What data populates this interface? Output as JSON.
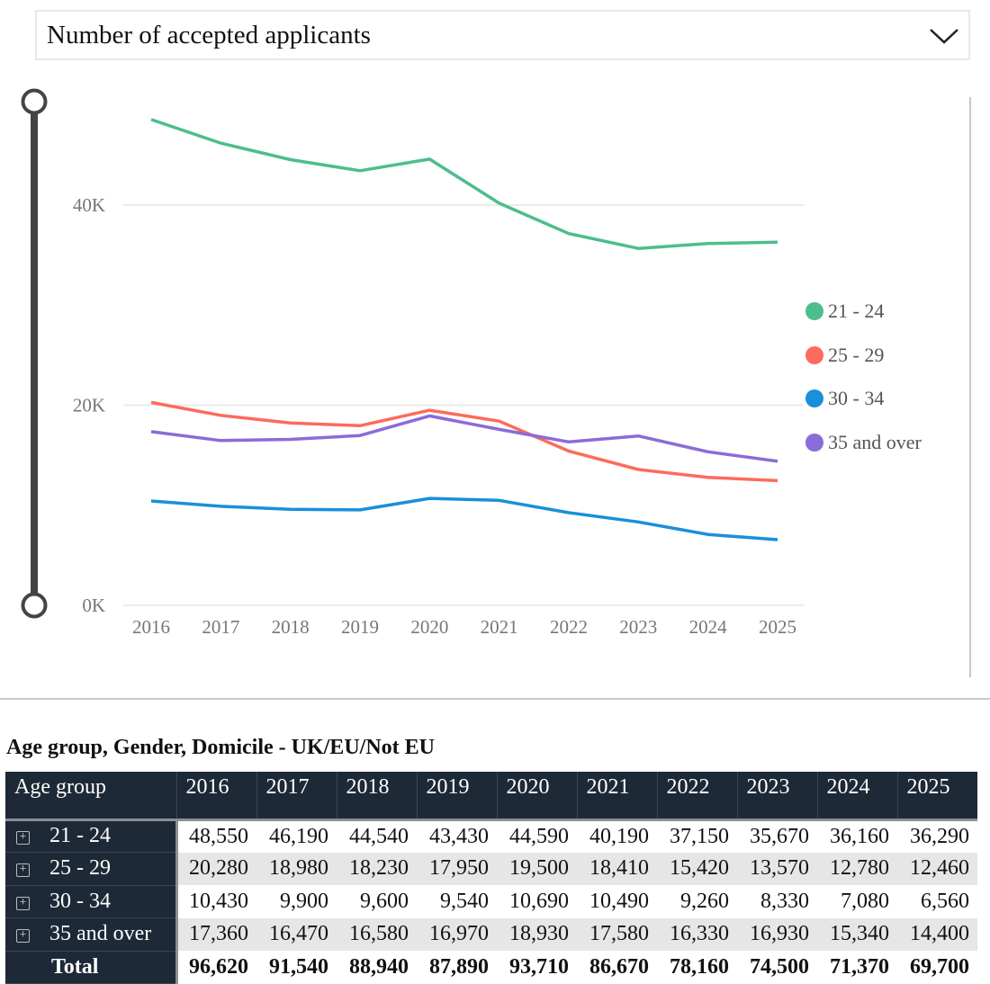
{
  "dropdown": {
    "label": "Number of accepted applicants"
  },
  "chart_data": {
    "type": "line",
    "x": [
      "2016",
      "2017",
      "2018",
      "2019",
      "2020",
      "2021",
      "2022",
      "2023",
      "2024",
      "2025"
    ],
    "yticks": [
      "0K",
      "20K",
      "40K"
    ],
    "ylim": [
      0,
      50000
    ],
    "series": [
      {
        "name": "21 - 24",
        "color": "#4dbd8c",
        "values": [
          48550,
          46190,
          44540,
          43430,
          44590,
          40190,
          37150,
          35670,
          36160,
          36290
        ]
      },
      {
        "name": "25 - 29",
        "color": "#fd6b5c",
        "values": [
          20280,
          18980,
          18230,
          17950,
          19500,
          18410,
          15420,
          13570,
          12780,
          12460
        ]
      },
      {
        "name": "30 - 34",
        "color": "#1a8fdb",
        "values": [
          10430,
          9900,
          9600,
          9540,
          10690,
          10490,
          9260,
          8330,
          7080,
          6560
        ]
      },
      {
        "name": "35 and over",
        "color": "#8b6bd9",
        "values": [
          17360,
          16470,
          16580,
          16970,
          18930,
          17580,
          16330,
          16930,
          15340,
          14400
        ]
      }
    ],
    "legend": "right"
  },
  "table": {
    "title": "Age group, Gender, Domicile - UK/EU/Not EU",
    "headers": [
      "Age group",
      "2016",
      "2017",
      "2018",
      "2019",
      "2020",
      "2021",
      "2022",
      "2023",
      "2024",
      "2025"
    ],
    "rows": [
      [
        "21 - 24",
        "48,550",
        "46,190",
        "44,540",
        "43,430",
        "44,590",
        "40,190",
        "37,150",
        "35,670",
        "36,160",
        "36,290"
      ],
      [
        "25 - 29",
        "20,280",
        "18,980",
        "18,230",
        "17,950",
        "19,500",
        "18,410",
        "15,420",
        "13,570",
        "12,780",
        "12,460"
      ],
      [
        "30 - 34",
        "10,430",
        "9,900",
        "9,600",
        "9,540",
        "10,690",
        "10,490",
        "9,260",
        "8,330",
        "7,080",
        "6,560"
      ],
      [
        "35 and over",
        "17,360",
        "16,470",
        "16,580",
        "16,970",
        "18,930",
        "17,580",
        "16,330",
        "16,930",
        "15,340",
        "14,400"
      ]
    ],
    "total": [
      "Total",
      "96,620",
      "91,540",
      "88,940",
      "87,890",
      "93,710",
      "86,670",
      "78,160",
      "74,500",
      "71,370",
      "69,700"
    ]
  }
}
